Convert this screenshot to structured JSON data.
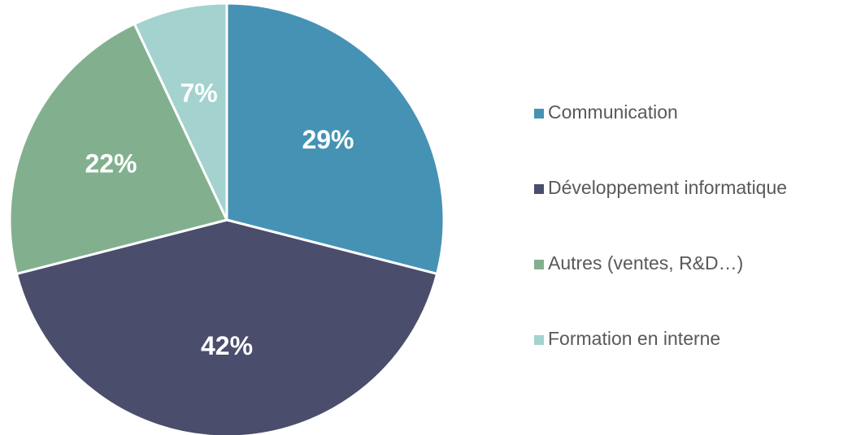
{
  "chart_data": {
    "type": "pie",
    "categories": [
      "Communication",
      "Développement informatique",
      "Autres (ventes, R&D…)",
      "Formation en interne"
    ],
    "values": [
      29,
      42,
      22,
      7
    ],
    "value_labels": [
      "29%",
      "42%",
      "22%",
      "7%"
    ],
    "colors": [
      "#4592b4",
      "#4a4d6c",
      "#82b08f",
      "#a3d2cf"
    ],
    "legend": "right"
  }
}
